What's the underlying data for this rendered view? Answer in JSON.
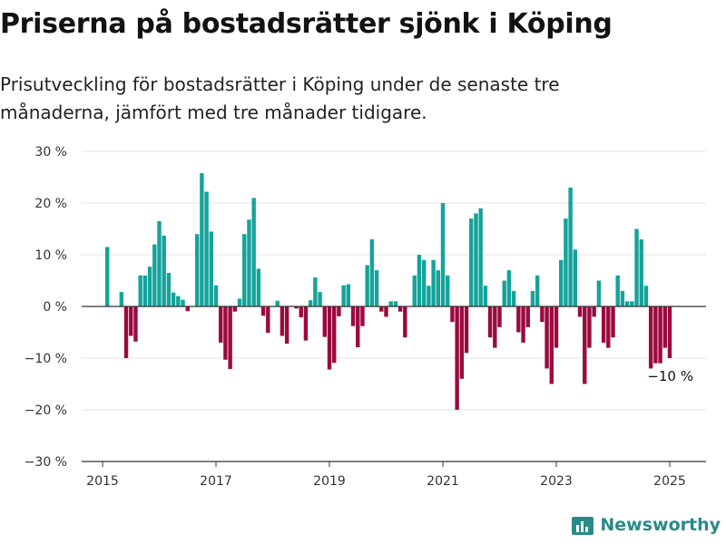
{
  "title": "Priserna på bostadsrätter sjönk i Köping",
  "subtitle": "Prisutveckling för bostadsrätter i Köping under de senaste tre månaderna, jämfört med tre månader tidigare.",
  "brand": "Newsworthy",
  "colors": {
    "positive": "#14a39a",
    "negative": "#9b0a3f",
    "grid": "#e3e3e3",
    "axis": "#333333",
    "brand": "#2a8a8a"
  },
  "chart_data": {
    "type": "bar",
    "title": "Priserna på bostadsrätter sjönk i Köping",
    "xlabel": "",
    "ylabel": "",
    "ylim": [
      -30,
      30
    ],
    "yticks": [
      30,
      20,
      10,
      0,
      -10,
      -20,
      -30
    ],
    "ytick_labels": [
      "30 %",
      "20 %",
      "10 %",
      "0 %",
      "−10 %",
      "−20 %",
      "−30 %"
    ],
    "xticks": [
      "2015",
      "2017",
      "2019",
      "2021",
      "2023",
      "2025"
    ],
    "x_start": "2015-01",
    "x_unit": "month",
    "annotation": {
      "text": "−10 %",
      "for_last_value": -10
    },
    "values": [
      0,
      11.5,
      0,
      0,
      2.8,
      -10,
      -5.7,
      -6.8,
      6,
      6,
      7.7,
      12,
      16.5,
      13.7,
      6.5,
      2.7,
      2,
      1.3,
      -0.9,
      0,
      14,
      25.8,
      22.2,
      14.5,
      4.1,
      -7,
      -10.3,
      -12.1,
      -1,
      1.5,
      14,
      16.8,
      21,
      7.3,
      -1.8,
      -5.1,
      0,
      1.1,
      -5.7,
      -7.2,
      0,
      -0.4,
      -2.1,
      -6.6,
      1.2,
      5.6,
      2.8,
      -5.9,
      -12.2,
      -10.9,
      -1.9,
      4.1,
      4.3,
      -3.8,
      -7.9,
      -3.8,
      8,
      13,
      7,
      -1,
      -2,
      1,
      1,
      -1,
      -6,
      0,
      6,
      10,
      9,
      4,
      9,
      7,
      20,
      6,
      -3,
      -20,
      -14,
      -9,
      17,
      18,
      19,
      4,
      -6,
      -8,
      -4,
      5,
      7,
      3,
      -5,
      -7,
      -4,
      3,
      6,
      -3,
      -12,
      -15,
      -8,
      9,
      17,
      23,
      11,
      -2,
      -15,
      -8,
      -2,
      5,
      -7,
      -8,
      -6,
      6,
      3,
      1,
      1,
      15,
      13,
      4,
      -12,
      -11,
      -11,
      -8,
      -10
    ]
  }
}
